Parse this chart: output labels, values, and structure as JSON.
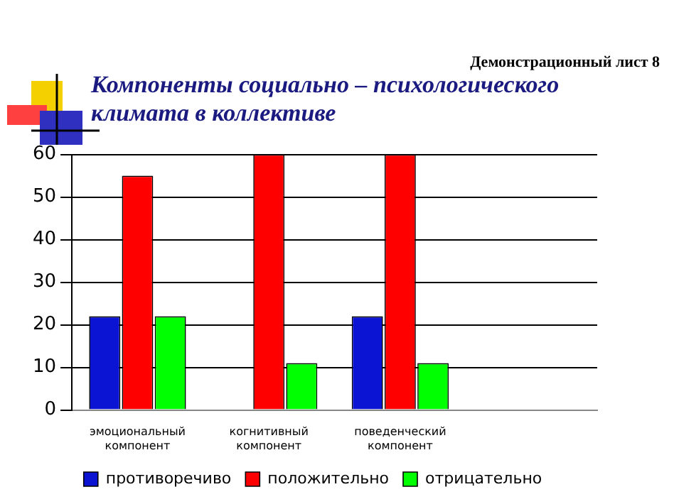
{
  "chart_data": {
    "type": "bar",
    "title": "Компоненты социально – психологического климата в коллективе",
    "subtitle": "Демонстрационный лист 8",
    "categories": [
      [
        "эмоциональный",
        "компонент"
      ],
      [
        "когнитивный",
        "компонент"
      ],
      [
        "поведенческий",
        "компонент"
      ],
      null
    ],
    "series": [
      {
        "name": "противоречиво",
        "color": "#0a14d2",
        "values": [
          22,
          0,
          22,
          null
        ]
      },
      {
        "name": "положительно",
        "color": "#ff0000",
        "values": [
          55,
          60,
          60,
          null
        ]
      },
      {
        "name": "отрицательно",
        "color": "#00ff00",
        "values": [
          22,
          11,
          11,
          null
        ]
      }
    ],
    "ylim": [
      0,
      60
    ],
    "yticks": [
      0,
      10,
      20,
      30,
      40,
      50,
      60
    ],
    "grid": "y",
    "legend": "bottom"
  }
}
